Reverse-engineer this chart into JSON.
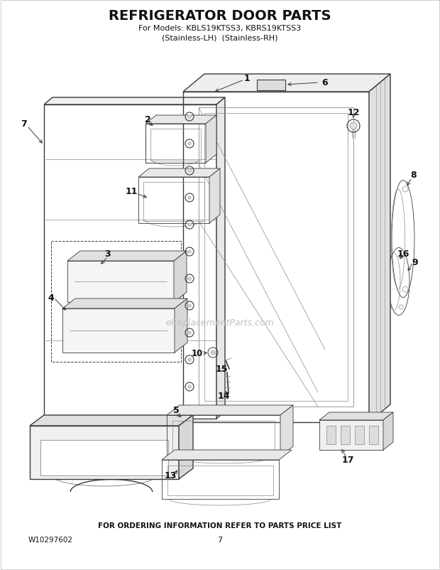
{
  "title": "REFRIGERATOR DOOR PARTS",
  "subtitle1": "For Models: KBLS19KTSS3, KBRS19KTSS3",
  "subtitle2": "(Stainless-LH)  (Stainless-RH)",
  "footer_text": "FOR ORDERING INFORMATION REFER TO PARTS PRICE LIST",
  "part_number": "W10297602",
  "page_number": "7",
  "watermark": "eReplacementParts.com",
  "bg": "#ffffff",
  "lc": "#3a3a3a",
  "lc_light": "#888888",
  "label_color": "#111111"
}
